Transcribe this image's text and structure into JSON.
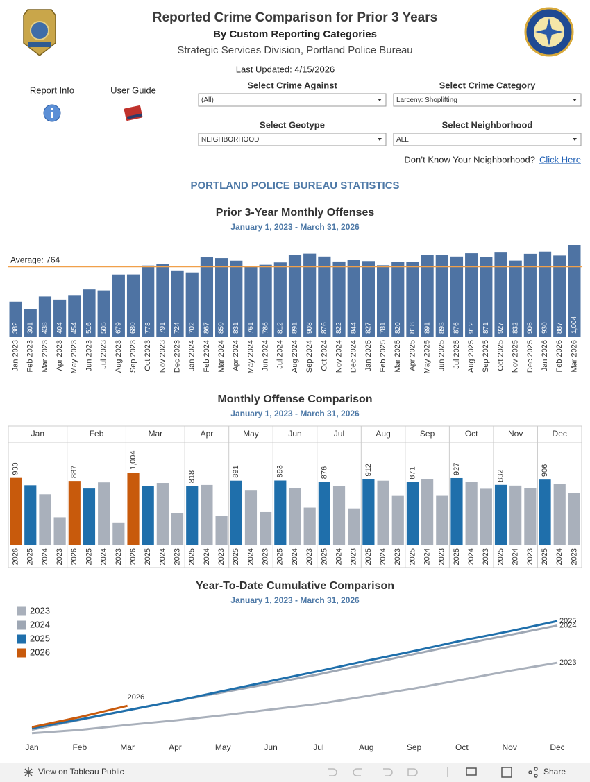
{
  "header": {
    "title": "Reported Crime Comparison for Prior 3 Years",
    "subtitle": "By Custom Reporting Categories",
    "division": "Strategic Services Division, Portland Police Bureau",
    "last_updated": "Last Updated: 4/15/2026"
  },
  "links": {
    "report_info": "Report Info",
    "user_guide": "User Guide"
  },
  "filters": [
    {
      "label": "Select Crime Against",
      "value": "(All)"
    },
    {
      "label": "Select Crime Category",
      "value": "Larceny: Shoplifting"
    },
    {
      "label": "Select Geotype",
      "value": "NEIGHBORHOOD"
    },
    {
      "label": "Select Neighborhood",
      "value": "ALL"
    }
  ],
  "neighborhood_help": {
    "text": "Don’t Know Your Neighborhood?",
    "link": "Click Here"
  },
  "section_title": "PORTLAND POLICE BUREAU STATISTICS",
  "chart_data": [
    {
      "type": "bar",
      "title": "Prior 3-Year Monthly Offenses",
      "subtitle": "January 1, 2023 - March 31, 2026",
      "categories": [
        "Jan 2023",
        "Feb 2023",
        "Mar 2023",
        "Apr 2023",
        "May 2023",
        "Jun 2023",
        "Jul 2023",
        "Aug 2023",
        "Sep 2023",
        "Oct 2023",
        "Nov 2023",
        "Dec 2023",
        "Jan 2024",
        "Feb 2024",
        "Mar 2024",
        "Apr 2024",
        "May 2024",
        "Jun 2024",
        "Jul 2024",
        "Aug 2024",
        "Sep 2024",
        "Oct 2024",
        "Nov 2024",
        "Dec 2024",
        "Jan 2025",
        "Feb 2025",
        "Mar 2025",
        "Apr 2025",
        "May 2025",
        "Jun 2025",
        "Jul 2025",
        "Aug 2025",
        "Sep 2025",
        "Oct 2025",
        "Nov 2025",
        "Dec 2025",
        "Jan 2026",
        "Feb 2026",
        "Mar 2026"
      ],
      "values": [
        382,
        301,
        438,
        404,
        454,
        516,
        505,
        679,
        680,
        778,
        791,
        724,
        702,
        867,
        859,
        831,
        761,
        786,
        812,
        891,
        908,
        876,
        822,
        844,
        827,
        781,
        820,
        818,
        891,
        893,
        876,
        912,
        871,
        927,
        832,
        906,
        930,
        887,
        1004
      ],
      "value_labels": [
        "382",
        "301",
        "438",
        "404",
        "454",
        "516",
        "505",
        "679",
        "680",
        "778",
        "791",
        "724",
        "702",
        "867",
        "859",
        "831",
        "761",
        "786",
        "812",
        "891",
        "908",
        "876",
        "822",
        "844",
        "827",
        "781",
        "820",
        "818",
        "891",
        "893",
        "876",
        "912",
        "871",
        "927",
        "832",
        "906",
        "930",
        "887",
        "1,004"
      ],
      "color": "#4e73a3",
      "reference_line": {
        "value": 764,
        "label": "Average: 764",
        "color": "#f0a04b"
      }
    },
    {
      "type": "grouped-bar",
      "title": "Monthly Offense Comparison",
      "subtitle": "January 1, 2023 - March 31, 2026",
      "categories": [
        "Jan",
        "Feb",
        "Mar",
        "Apr",
        "May",
        "Jun",
        "Jul",
        "Aug",
        "Sep",
        "Oct",
        "Nov",
        "Dec"
      ],
      "series": [
        {
          "name": "2026",
          "color": "#c85a0c",
          "values": [
            930,
            887,
            1004,
            null,
            null,
            null,
            null,
            null,
            null,
            null,
            null,
            null
          ],
          "value_labels": [
            "930",
            "887",
            "1,004",
            null,
            null,
            null,
            null,
            null,
            null,
            null,
            null,
            null
          ]
        },
        {
          "name": "2025",
          "color": "#1f6fab",
          "values": [
            827,
            781,
            820,
            818,
            891,
            893,
            876,
            912,
            871,
            927,
            832,
            906
          ]
        },
        {
          "name": "2024",
          "color": "#a9b0bb",
          "values": [
            702,
            867,
            859,
            831,
            761,
            786,
            812,
            891,
            908,
            876,
            822,
            844
          ]
        },
        {
          "name": "2023",
          "color": "#a9b0bb",
          "values": [
            382,
            301,
            438,
            404,
            454,
            516,
            505,
            679,
            680,
            778,
            791,
            724
          ]
        }
      ]
    },
    {
      "type": "line",
      "title": "Year-To-Date Cumulative Comparison",
      "subtitle": "January 1, 2023 - March 31, 2026",
      "categories": [
        "Jan",
        "Feb",
        "Mar",
        "Apr",
        "May",
        "Jun",
        "Jul",
        "Aug",
        "Sep",
        "Oct",
        "Nov",
        "Dec"
      ],
      "legend": "top-left",
      "series": [
        {
          "name": "2023",
          "color": "#a9b0bb",
          "values": [
            382,
            683,
            1121,
            1525,
            1979,
            2495,
            3000,
            3679,
            4359,
            5137,
            5928,
            6652
          ]
        },
        {
          "name": "2024",
          "color": "#9ea7b4",
          "values": [
            702,
            1569,
            2428,
            3259,
            4020,
            4806,
            5618,
            6509,
            7417,
            8293,
            9115,
            9959
          ]
        },
        {
          "name": "2025",
          "color": "#1f6fab",
          "values": [
            827,
            1608,
            2428,
            3246,
            4137,
            5030,
            5906,
            6818,
            7689,
            8616,
            9448,
            10354
          ]
        },
        {
          "name": "2026",
          "color": "#c85a0c",
          "values": [
            930,
            1817,
            2821,
            null,
            null,
            null,
            null,
            null,
            null,
            null,
            null,
            null
          ]
        }
      ]
    }
  ],
  "footer": {
    "view": "View on Tableau Public",
    "share": "Share"
  }
}
